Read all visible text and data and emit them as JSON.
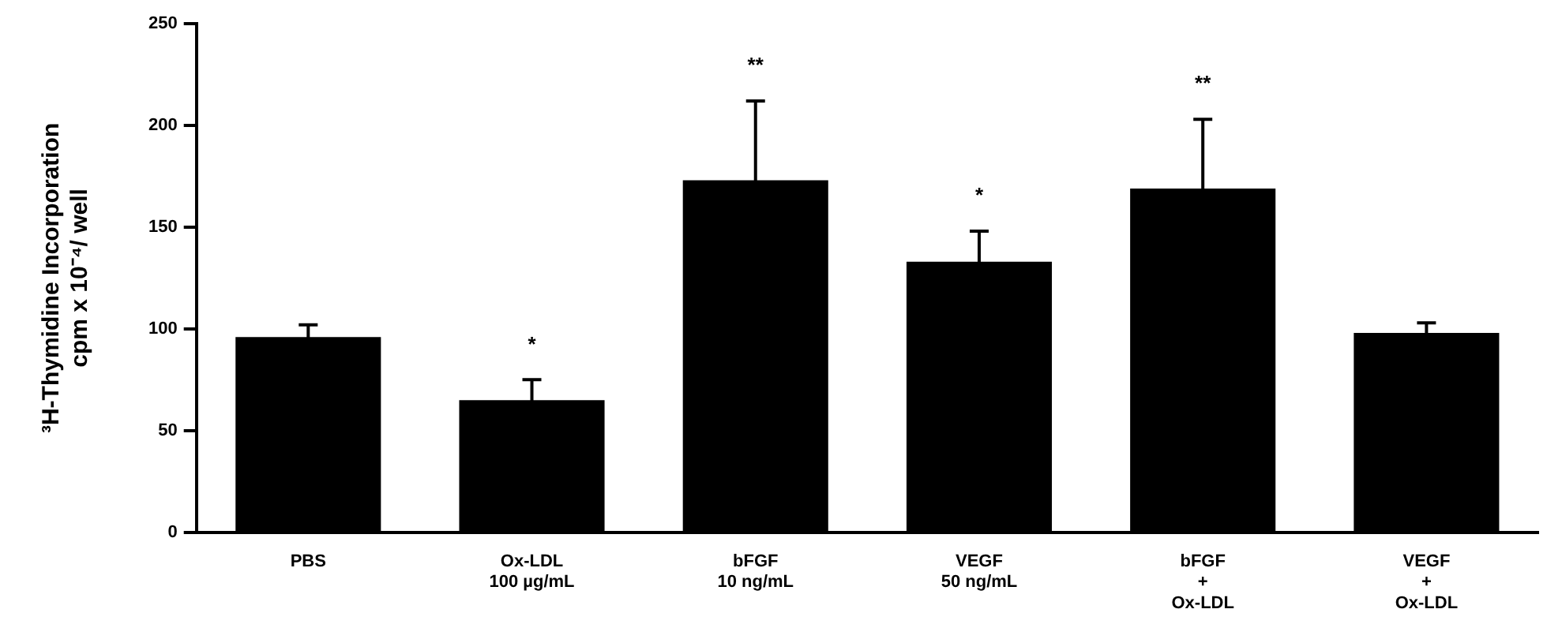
{
  "chart_data": {
    "type": "bar",
    "ylabel": "³H-Thymidine Incorporation\ncpm x 10⁻⁴/ well",
    "categories": [
      "PBS",
      "Ox-LDL\n100 µg/mL",
      "bFGF\n10 ng/mL",
      "VEGF\n50 ng/mL",
      "bFGF\n+\nOx-LDL",
      "VEGF\n+\nOx-LDL"
    ],
    "values": [
      96,
      65,
      173,
      133,
      169,
      98
    ],
    "errors": [
      6,
      10,
      39,
      15,
      34,
      5
    ],
    "color": "#000000",
    "ylim": [
      0,
      250
    ],
    "yticks": [
      0,
      50,
      100,
      150,
      200,
      250
    ],
    "grid": false,
    "legend": false,
    "annotations": [
      {
        "text": "*",
        "x": "Ox-LDL\n100 µg/mL",
        "y": 75
      },
      {
        "text": "**",
        "x": "bFGF\n10 ng/mL",
        "y": 212
      },
      {
        "text": "*",
        "x": "VEGF\n50 ng/mL",
        "y": 148
      },
      {
        "text": "**",
        "x": "bFGF\n+\nOx-LDL",
        "y": 203
      }
    ]
  }
}
